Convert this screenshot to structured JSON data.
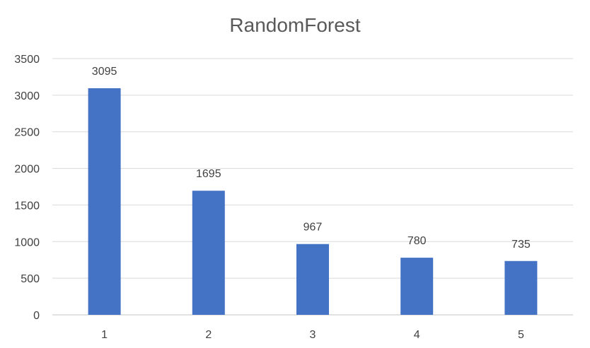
{
  "chart_data": {
    "type": "bar",
    "title": "RandomForest",
    "categories": [
      "1",
      "2",
      "3",
      "4",
      "5"
    ],
    "values": [
      3095,
      1695,
      967,
      780,
      735
    ],
    "ylim": [
      0,
      3500
    ],
    "yticks": [
      0,
      500,
      1000,
      1500,
      2000,
      2500,
      3000,
      3500
    ],
    "grid": true,
    "data_labels": true,
    "bar_color": "#4472c4"
  }
}
